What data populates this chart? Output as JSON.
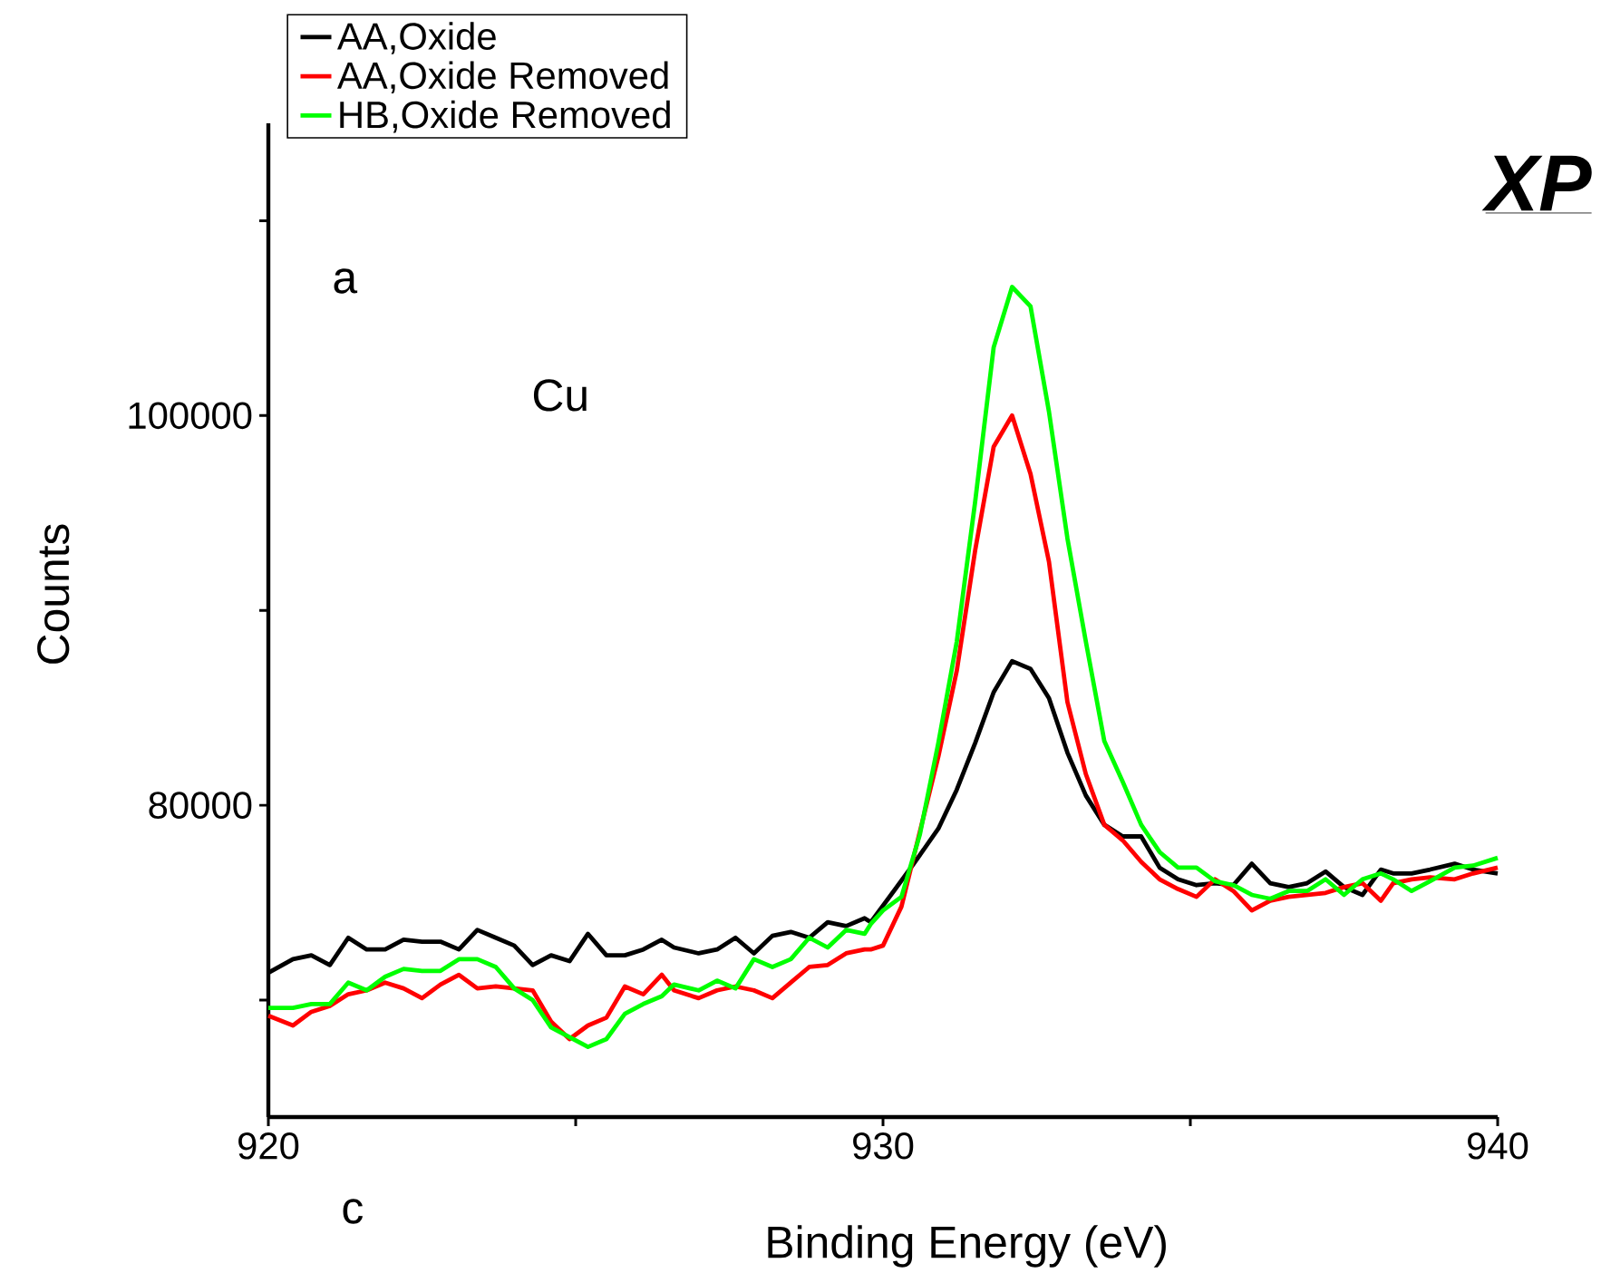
{
  "chart_data": {
    "type": "line",
    "xlabel": "Binding Energy (eV)",
    "ylabel": "Counts",
    "annotations": [
      "a",
      "Cu",
      "c",
      "XP"
    ],
    "xlim": [
      920,
      940
    ],
    "ylim": [
      64000,
      115000
    ],
    "xticks": [
      920,
      {
        "value": 925,
        "label": null
      },
      930,
      {
        "value": 935,
        "label": null
      },
      940
    ],
    "yticks": [
      {
        "value": 70000,
        "label": null
      },
      80000,
      {
        "value": 90000,
        "label": null
      },
      100000,
      {
        "value": 110000,
        "label": null
      }
    ],
    "legend": "top left",
    "grid": false,
    "marker": "none",
    "line_style": "solid",
    "series": [
      {
        "name": "AA,Oxide",
        "color": "#000000",
        "x": [
          920.0,
          920.4,
          920.7,
          921.0,
          921.3,
          921.6,
          921.9,
          922.2,
          922.5,
          922.8,
          923.1,
          923.4,
          923.7,
          924.0,
          924.3,
          924.6,
          924.9,
          925.2,
          925.5,
          925.8,
          926.1,
          926.4,
          926.6,
          927.0,
          927.3,
          927.6,
          927.9,
          928.2,
          928.5,
          928.8,
          929.1,
          929.4,
          929.7,
          929.8,
          930.2,
          930.5,
          930.9,
          931.2,
          931.5,
          931.8,
          932.1,
          932.4,
          932.7,
          933.0,
          933.3,
          933.6,
          933.9,
          934.2,
          934.5,
          934.8,
          935.1,
          935.4,
          935.7,
          936.0,
          936.3,
          936.6,
          936.9,
          937.2,
          937.5,
          937.8,
          938.1,
          938.3,
          938.6,
          938.9,
          939.3,
          939.6,
          940.0
        ],
        "values": [
          71400,
          72100,
          72300,
          71800,
          73200,
          72600,
          72600,
          73100,
          73000,
          73000,
          72600,
          73600,
          73200,
          72800,
          71800,
          72300,
          72000,
          73400,
          72300,
          72300,
          72600,
          73100,
          72700,
          72400,
          72600,
          73200,
          72400,
          73300,
          73500,
          73200,
          74000,
          73800,
          74200,
          74000,
          75700,
          77000,
          78800,
          80800,
          83200,
          85800,
          87400,
          87000,
          85500,
          82700,
          80500,
          79000,
          78400,
          78400,
          76800,
          76200,
          75900,
          76000,
          75900,
          77000,
          76000,
          75800,
          76000,
          76600,
          75800,
          75400,
          76700,
          76500,
          76500,
          76700,
          77000,
          76700,
          76500
        ]
      },
      {
        "name": "AA,Oxide Removed",
        "color": "#ff0000",
        "x": [
          920.0,
          920.4,
          920.7,
          921.0,
          921.3,
          921.6,
          921.9,
          922.2,
          922.5,
          922.8,
          923.1,
          923.4,
          923.7,
          924.0,
          924.3,
          924.6,
          924.9,
          925.2,
          925.5,
          925.8,
          926.1,
          926.4,
          926.6,
          927.0,
          927.3,
          927.6,
          927.9,
          928.2,
          928.5,
          928.8,
          929.1,
          929.4,
          929.7,
          929.8,
          930.0,
          930.3,
          930.6,
          930.9,
          931.2,
          931.5,
          931.8,
          932.1,
          932.4,
          932.7,
          933.0,
          933.3,
          933.6,
          933.9,
          934.2,
          934.5,
          934.8,
          935.1,
          935.4,
          935.7,
          936.0,
          936.3,
          936.6,
          936.9,
          937.2,
          937.5,
          937.8,
          938.1,
          938.3,
          938.6,
          938.9,
          939.3,
          939.6,
          940.0
        ],
        "values": [
          69200,
          68700,
          69400,
          69700,
          70300,
          70500,
          70900,
          70600,
          70100,
          70800,
          71300,
          70600,
          70700,
          70600,
          70500,
          68900,
          68000,
          68700,
          69100,
          70700,
          70300,
          71300,
          70500,
          70100,
          70500,
          70700,
          70500,
          70100,
          70900,
          71700,
          71800,
          72400,
          72600,
          72600,
          72800,
          74800,
          null,
          82500,
          86900,
          93100,
          98400,
          100000,
          97000,
          92500,
          85300,
          81600,
          79000,
          78200,
          77100,
          76200,
          75700,
          75300,
          76200,
          75600,
          74600,
          75100,
          75300,
          75400,
          75500,
          75800,
          76000,
          75100,
          76000,
          76200,
          76300,
          76200,
          76500,
          76800
        ]
      },
      {
        "name": "HB,Oxide Removed",
        "color": "#00ff00",
        "x": [
          920.0,
          920.4,
          920.7,
          921.0,
          921.3,
          921.6,
          921.9,
          922.2,
          922.5,
          922.8,
          923.1,
          923.4,
          923.7,
          924.0,
          924.3,
          924.6,
          924.9,
          925.2,
          925.5,
          925.8,
          926.1,
          926.4,
          926.6,
          927.0,
          927.3,
          927.6,
          927.9,
          928.2,
          928.5,
          928.8,
          929.1,
          929.4,
          929.7,
          929.8,
          930.0,
          930.3,
          930.6,
          930.9,
          931.2,
          931.5,
          931.8,
          932.1,
          932.4,
          932.7,
          933.0,
          933.3,
          933.6,
          933.9,
          934.2,
          934.5,
          934.8,
          935.1,
          935.4,
          935.7,
          936.0,
          936.3,
          936.6,
          936.9,
          937.2,
          937.5,
          937.8,
          938.1,
          938.3,
          938.6,
          938.9,
          939.3,
          939.6,
          940.0
        ],
        "values": [
          69600,
          69600,
          69800,
          69800,
          70900,
          70500,
          71200,
          71600,
          71500,
          71500,
          72100,
          72100,
          71700,
          70600,
          70000,
          68600,
          68100,
          67600,
          68000,
          69300,
          69800,
          70200,
          70800,
          70500,
          71000,
          70600,
          72100,
          71700,
          72100,
          73200,
          72700,
          73600,
          73400,
          73900,
          74600,
          75300,
          78500,
          83200,
          88400,
          95600,
          103500,
          106600,
          105600,
          100200,
          93700,
          88400,
          83300,
          81200,
          79000,
          77600,
          76800,
          76800,
          76100,
          75900,
          75400,
          75200,
          75600,
          75600,
          76200,
          75400,
          76200,
          76500,
          76200,
          75600,
          76100,
          76800,
          76900,
          77300
        ]
      }
    ]
  }
}
